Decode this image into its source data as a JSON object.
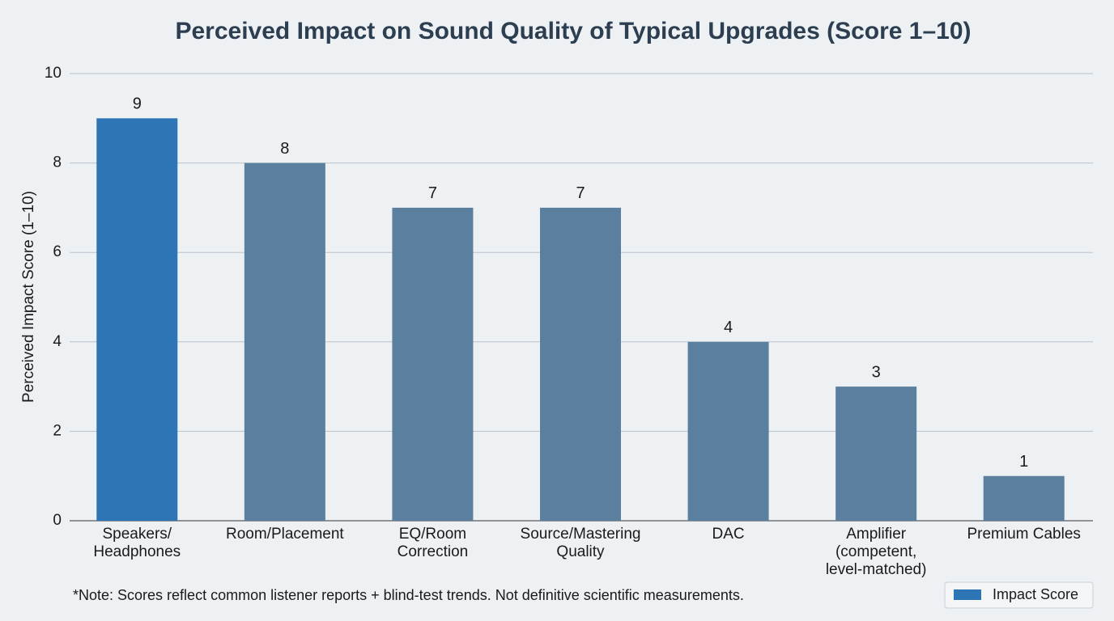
{
  "chart_data": {
    "type": "bar",
    "title": "Perceived Impact on Sound Quality of Typical Upgrades (Score 1–10)",
    "y_label": "Perceived Impact Score (1–10)",
    "note": "*Note: Scores reflect common listener reports + blind-test trends. Not definitive scientific measurements.",
    "categories": [
      "Speakers/\nHeadphones",
      "Room/Placement",
      "EQ/Room\nCorrection",
      "Source/Mastering\nQuality",
      "DAC",
      "Amplifier\n(competent,\nlevel-matched)",
      "Premium Cables"
    ],
    "series": [
      {
        "name": "Impact Score",
        "color": "#2e75b6",
        "values": [
          9,
          8,
          7,
          7,
          4,
          3,
          1
        ]
      }
    ],
    "bar_colors": [
      "#2e75b6",
      "#5b7f9e",
      "#5b7f9e",
      "#5b7f9e",
      "#5b7f9e",
      "#5b7f9e",
      "#5b7f9e"
    ],
    "ylim": [
      0,
      10
    ],
    "yticks": [
      0,
      2,
      4,
      6,
      8,
      10
    ],
    "grid": true,
    "legend": "lower right",
    "data_labels": true
  }
}
